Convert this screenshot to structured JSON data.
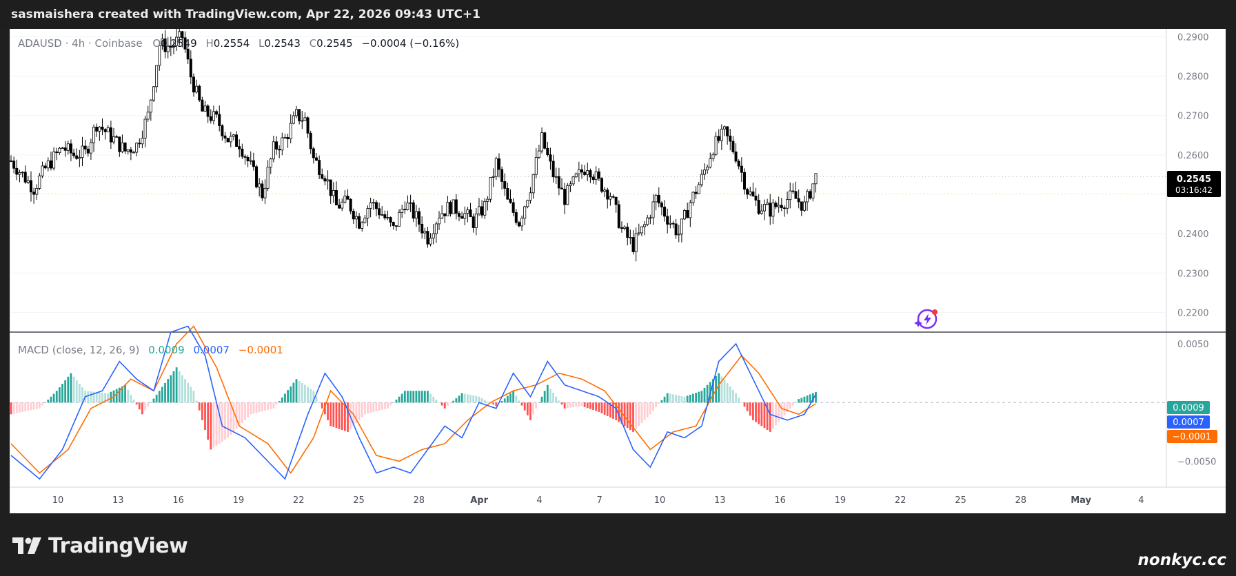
{
  "header": {
    "text": "sasmaishera created with TradingView.com, Apr 22, 2026 09:43 UTC+1"
  },
  "legend": {
    "symbol": "ADAUSD · 4h · Coinbase",
    "o_label": "O",
    "o_value": "0.2549",
    "h_label": "H",
    "h_value": "0.2554",
    "l_label": "L",
    "l_value": "0.2543",
    "c_label": "C",
    "c_value": "0.2545",
    "change": "−0.0004 (−0.16%)"
  },
  "macd_legend": {
    "label": "MACD (close, 12, 26, 9)",
    "hist_value": "0.0009",
    "macd_value": "0.0007",
    "signal_value": "−0.0001"
  },
  "price_axis": {
    "ticks": [
      "0.2900",
      "0.2800",
      "0.2700",
      "0.2600",
      "0.2400",
      "0.2300",
      "0.2200"
    ],
    "current_price": "0.2545",
    "countdown": "03:16:42"
  },
  "macd_axis": {
    "ticks": [
      "0.0050",
      "−0.0050"
    ],
    "hist_badge": "0.0009",
    "macd_badge": "0.0007",
    "signal_badge": "−0.0001"
  },
  "time_axis": {
    "ticks": [
      "10",
      "13",
      "16",
      "19",
      "22",
      "25",
      "28",
      "Apr",
      "4",
      "7",
      "10",
      "13",
      "16",
      "19",
      "22",
      "25",
      "28",
      "May",
      "4"
    ]
  },
  "footer": {
    "logo_text": "TradingView",
    "watermark": "nonkyc.cc"
  },
  "colors": {
    "up": "#26a69a",
    "down": "#ef5350",
    "macd": "#2962ff",
    "signal": "#ff6d00",
    "hist_up_strong": "#26a69a",
    "hist_up_weak": "#b2dfdb",
    "hist_down_strong": "#ff5252",
    "hist_down_weak": "#ffcdd2",
    "candle": "#000000"
  },
  "chart_data": {
    "type": "candlestick",
    "symbol": "ADAUSD",
    "interval": "4h",
    "exchange": "Coinbase",
    "price_range": [
      0.215,
      0.292
    ],
    "macd_range": [
      -0.0072,
      0.006
    ],
    "x_ticks": [
      "10",
      "13",
      "16",
      "19",
      "22",
      "25",
      "28",
      "Apr",
      "4",
      "7",
      "10",
      "13",
      "16",
      "19",
      "22",
      "25",
      "28",
      "May",
      "4"
    ],
    "close_path": [
      {
        "t": 0,
        "p": 0.2585
      },
      {
        "t": 8,
        "p": 0.2515
      },
      {
        "t": 12,
        "p": 0.2565
      },
      {
        "t": 18,
        "p": 0.262
      },
      {
        "t": 22,
        "p": 0.26
      },
      {
        "t": 26,
        "p": 0.2605
      },
      {
        "t": 30,
        "p": 0.268
      },
      {
        "t": 36,
        "p": 0.264
      },
      {
        "t": 40,
        "p": 0.261
      },
      {
        "t": 44,
        "p": 0.2625
      },
      {
        "t": 48,
        "p": 0.27
      },
      {
        "t": 52,
        "p": 0.288
      },
      {
        "t": 56,
        "p": 0.2875
      },
      {
        "t": 60,
        "p": 0.29
      },
      {
        "t": 63,
        "p": 0.28
      },
      {
        "t": 67,
        "p": 0.271
      },
      {
        "t": 72,
        "p": 0.269
      },
      {
        "t": 76,
        "p": 0.264
      },
      {
        "t": 80,
        "p": 0.263
      },
      {
        "t": 84,
        "p": 0.257
      },
      {
        "t": 88,
        "p": 0.25
      },
      {
        "t": 92,
        "p": 0.2615
      },
      {
        "t": 96,
        "p": 0.264
      },
      {
        "t": 100,
        "p": 0.27
      },
      {
        "t": 103,
        "p": 0.269
      },
      {
        "t": 106,
        "p": 0.259
      },
      {
        "t": 110,
        "p": 0.255
      },
      {
        "t": 114,
        "p": 0.247
      },
      {
        "t": 118,
        "p": 0.248
      },
      {
        "t": 122,
        "p": 0.243
      },
      {
        "t": 126,
        "p": 0.248
      },
      {
        "t": 130,
        "p": 0.245
      },
      {
        "t": 134,
        "p": 0.241
      },
      {
        "t": 138,
        "p": 0.248
      },
      {
        "t": 142,
        "p": 0.244
      },
      {
        "t": 146,
        "p": 0.239
      },
      {
        "t": 150,
        "p": 0.245
      },
      {
        "t": 154,
        "p": 0.247
      },
      {
        "t": 158,
        "p": 0.2455
      },
      {
        "t": 162,
        "p": 0.243
      },
      {
        "t": 166,
        "p": 0.247
      },
      {
        "t": 170,
        "p": 0.258
      },
      {
        "t": 174,
        "p": 0.248
      },
      {
        "t": 178,
        "p": 0.243
      },
      {
        "t": 182,
        "p": 0.252
      },
      {
        "t": 186,
        "p": 0.264
      },
      {
        "t": 190,
        "p": 0.255
      },
      {
        "t": 194,
        "p": 0.249
      },
      {
        "t": 198,
        "p": 0.254
      },
      {
        "t": 202,
        "p": 0.2575
      },
      {
        "t": 206,
        "p": 0.253
      },
      {
        "t": 210,
        "p": 0.25
      },
      {
        "t": 214,
        "p": 0.241
      },
      {
        "t": 218,
        "p": 0.237
      },
      {
        "t": 222,
        "p": 0.242
      },
      {
        "t": 226,
        "p": 0.249
      },
      {
        "t": 230,
        "p": 0.244
      },
      {
        "t": 234,
        "p": 0.24
      },
      {
        "t": 238,
        "p": 0.248
      },
      {
        "t": 242,
        "p": 0.254
      },
      {
        "t": 246,
        "p": 0.262
      },
      {
        "t": 250,
        "p": 0.2655
      },
      {
        "t": 254,
        "p": 0.26
      },
      {
        "t": 258,
        "p": 0.251
      },
      {
        "t": 262,
        "p": 0.247
      },
      {
        "t": 266,
        "p": 0.246
      },
      {
        "t": 270,
        "p": 0.248
      },
      {
        "t": 274,
        "p": 0.2495
      },
      {
        "t": 278,
        "p": 0.247
      },
      {
        "t": 282,
        "p": 0.2545
      }
    ],
    "series": [
      {
        "name": "MACD",
        "color": "#2962ff",
        "values": [
          {
            "t": 0,
            "v": -0.0045
          },
          {
            "t": 10,
            "v": -0.0065
          },
          {
            "t": 18,
            "v": -0.004
          },
          {
            "t": 26,
            "v": 0.0005
          },
          {
            "t": 32,
            "v": 0.001
          },
          {
            "t": 38,
            "v": 0.0035
          },
          {
            "t": 44,
            "v": 0.002
          },
          {
            "t": 50,
            "v": 0.001
          },
          {
            "t": 56,
            "v": 0.006
          },
          {
            "t": 62,
            "v": 0.0065
          },
          {
            "t": 68,
            "v": 0.004
          },
          {
            "t": 74,
            "v": -0.002
          },
          {
            "t": 82,
            "v": -0.003
          },
          {
            "t": 90,
            "v": -0.005
          },
          {
            "t": 96,
            "v": -0.0065
          },
          {
            "t": 104,
            "v": -0.001
          },
          {
            "t": 110,
            "v": 0.0025
          },
          {
            "t": 116,
            "v": 0.0005
          },
          {
            "t": 122,
            "v": -0.003
          },
          {
            "t": 128,
            "v": -0.006
          },
          {
            "t": 134,
            "v": -0.0055
          },
          {
            "t": 140,
            "v": -0.006
          },
          {
            "t": 146,
            "v": -0.004
          },
          {
            "t": 152,
            "v": -0.002
          },
          {
            "t": 158,
            "v": -0.003
          },
          {
            "t": 164,
            "v": 0.0
          },
          {
            "t": 170,
            "v": -0.0005
          },
          {
            "t": 176,
            "v": 0.0025
          },
          {
            "t": 182,
            "v": 0.0005
          },
          {
            "t": 188,
            "v": 0.0035
          },
          {
            "t": 194,
            "v": 0.0015
          },
          {
            "t": 200,
            "v": 0.001
          },
          {
            "t": 206,
            "v": 0.0005
          },
          {
            "t": 212,
            "v": -0.0005
          },
          {
            "t": 218,
            "v": -0.004
          },
          {
            "t": 224,
            "v": -0.0055
          },
          {
            "t": 230,
            "v": -0.0025
          },
          {
            "t": 236,
            "v": -0.003
          },
          {
            "t": 242,
            "v": -0.002
          },
          {
            "t": 248,
            "v": 0.0035
          },
          {
            "t": 254,
            "v": 0.005
          },
          {
            "t": 260,
            "v": 0.002
          },
          {
            "t": 266,
            "v": -0.001
          },
          {
            "t": 272,
            "v": -0.0015
          },
          {
            "t": 278,
            "v": -0.001
          },
          {
            "t": 282,
            "v": 0.0007
          }
        ]
      },
      {
        "name": "Signal",
        "color": "#ff6d00",
        "values": [
          {
            "t": 0,
            "v": -0.0035
          },
          {
            "t": 10,
            "v": -0.006
          },
          {
            "t": 20,
            "v": -0.004
          },
          {
            "t": 28,
            "v": -0.0005
          },
          {
            "t": 36,
            "v": 0.0005
          },
          {
            "t": 42,
            "v": 0.002
          },
          {
            "t": 50,
            "v": 0.001
          },
          {
            "t": 58,
            "v": 0.005
          },
          {
            "t": 64,
            "v": 0.0065
          },
          {
            "t": 72,
            "v": 0.003
          },
          {
            "t": 80,
            "v": -0.002
          },
          {
            "t": 90,
            "v": -0.0035
          },
          {
            "t": 98,
            "v": -0.006
          },
          {
            "t": 106,
            "v": -0.003
          },
          {
            "t": 112,
            "v": 0.001
          },
          {
            "t": 120,
            "v": -0.001
          },
          {
            "t": 128,
            "v": -0.0045
          },
          {
            "t": 136,
            "v": -0.005
          },
          {
            "t": 144,
            "v": -0.004
          },
          {
            "t": 152,
            "v": -0.0035
          },
          {
            "t": 160,
            "v": -0.0015
          },
          {
            "t": 168,
            "v": 0.0
          },
          {
            "t": 176,
            "v": 0.001
          },
          {
            "t": 184,
            "v": 0.0015
          },
          {
            "t": 192,
            "v": 0.0025
          },
          {
            "t": 200,
            "v": 0.002
          },
          {
            "t": 208,
            "v": 0.001
          },
          {
            "t": 216,
            "v": -0.0015
          },
          {
            "t": 224,
            "v": -0.004
          },
          {
            "t": 232,
            "v": -0.0025
          },
          {
            "t": 240,
            "v": -0.002
          },
          {
            "t": 248,
            "v": 0.0015
          },
          {
            "t": 256,
            "v": 0.004
          },
          {
            "t": 262,
            "v": 0.0025
          },
          {
            "t": 270,
            "v": -0.0005
          },
          {
            "t": 276,
            "v": -0.001
          },
          {
            "t": 282,
            "v": -0.0001
          }
        ]
      }
    ],
    "histogram": [
      {
        "t": 0,
        "v": -0.001
      },
      {
        "t": 10,
        "v": -0.0005
      },
      {
        "t": 16,
        "v": 0.001
      },
      {
        "t": 21,
        "v": 0.0025
      },
      {
        "t": 26,
        "v": 0.001
      },
      {
        "t": 34,
        "v": 0.0008
      },
      {
        "t": 40,
        "v": 0.0015
      },
      {
        "t": 46,
        "v": -0.001
      },
      {
        "t": 52,
        "v": 0.001
      },
      {
        "t": 58,
        "v": 0.003
      },
      {
        "t": 64,
        "v": 0.001
      },
      {
        "t": 70,
        "v": -0.004
      },
      {
        "t": 76,
        "v": -0.003
      },
      {
        "t": 84,
        "v": -0.001
      },
      {
        "t": 92,
        "v": -0.0005
      },
      {
        "t": 100,
        "v": 0.002
      },
      {
        "t": 106,
        "v": 0.001
      },
      {
        "t": 112,
        "v": -0.002
      },
      {
        "t": 118,
        "v": -0.0025
      },
      {
        "t": 124,
        "v": -0.001
      },
      {
        "t": 132,
        "v": -0.0005
      },
      {
        "t": 138,
        "v": 0.001
      },
      {
        "t": 146,
        "v": 0.001
      },
      {
        "t": 152,
        "v": -0.0005
      },
      {
        "t": 158,
        "v": 0.0008
      },
      {
        "t": 164,
        "v": 0.0005
      },
      {
        "t": 170,
        "v": -0.0003
      },
      {
        "t": 176,
        "v": 0.001
      },
      {
        "t": 182,
        "v": -0.0015
      },
      {
        "t": 188,
        "v": 0.0015
      },
      {
        "t": 194,
        "v": -0.0005
      },
      {
        "t": 200,
        "v": -0.0003
      },
      {
        "t": 206,
        "v": -0.0008
      },
      {
        "t": 212,
        "v": -0.0015
      },
      {
        "t": 218,
        "v": -0.0025
      },
      {
        "t": 224,
        "v": -0.001
      },
      {
        "t": 230,
        "v": 0.0008
      },
      {
        "t": 236,
        "v": 0.0005
      },
      {
        "t": 242,
        "v": 0.001
      },
      {
        "t": 248,
        "v": 0.0025
      },
      {
        "t": 254,
        "v": 0.0008
      },
      {
        "t": 260,
        "v": -0.0015
      },
      {
        "t": 266,
        "v": -0.0025
      },
      {
        "t": 272,
        "v": -0.0008
      },
      {
        "t": 276,
        "v": 0.0003
      },
      {
        "t": 282,
        "v": 0.0009
      }
    ]
  }
}
